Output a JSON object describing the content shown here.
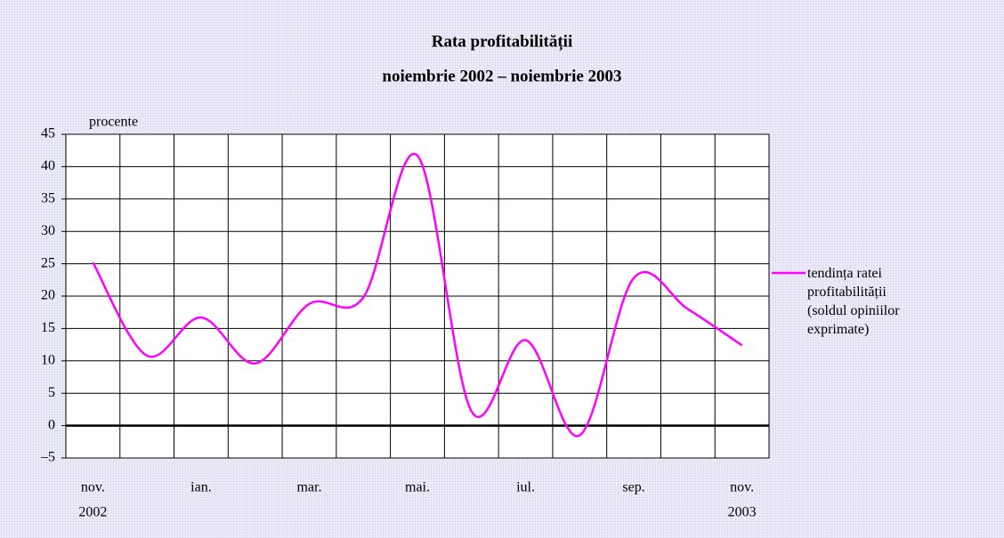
{
  "chart_data": {
    "type": "line",
    "title": "Rata profitabilității",
    "subtitle": "noiembrie 2002 – noiembrie 2003",
    "y_label": "procente",
    "categories": [
      "nov.",
      null,
      "ian.",
      null,
      "mar.",
      null,
      "mai.",
      null,
      "iul.",
      null,
      "sep.",
      null,
      "nov."
    ],
    "category_years": [
      "2002",
      null,
      null,
      null,
      null,
      null,
      null,
      null,
      null,
      null,
      null,
      null,
      "2003"
    ],
    "series": [
      {
        "name": "tendința ratei profitabilității (soldul opiniilor exprimate)",
        "color": "#ff00ff",
        "values": [
          25.2,
          10.8,
          16.7,
          9.6,
          18.8,
          19.8,
          41.7,
          2.2,
          13.2,
          -1.5,
          22.8,
          18,
          12.4
        ]
      }
    ],
    "ylim": [
      -5,
      45
    ],
    "yticks": [
      {
        "value": -5,
        "label": "–5"
      },
      0,
      5,
      10,
      15,
      20,
      25,
      30,
      35,
      40,
      45
    ],
    "grid": true,
    "legend": "right"
  }
}
